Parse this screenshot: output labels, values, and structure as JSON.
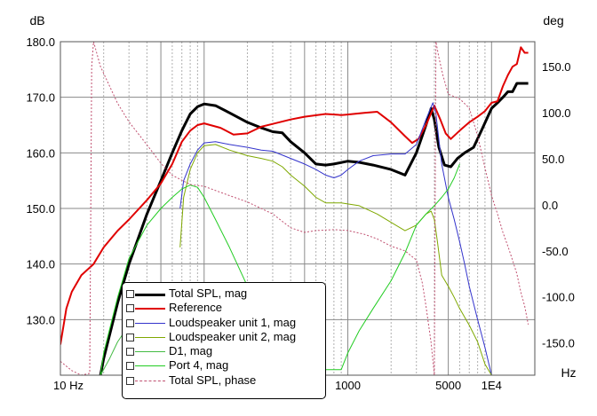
{
  "chart_data": {
    "type": "line",
    "left_unit": "dB",
    "right_unit": "deg",
    "x_unit": "Hz",
    "x_scale": "log",
    "xlim": [
      10,
      20000
    ],
    "ylim_left": [
      120,
      180
    ],
    "ylim_right": [
      -185,
      177
    ],
    "x_tick_labels": [
      {
        "x": 10,
        "label": "10 Hz"
      },
      {
        "x": 1000,
        "label": "1000"
      },
      {
        "x": 5000,
        "label": "5000"
      },
      {
        "x": 10000,
        "label": "1E4"
      }
    ],
    "y_left_ticks": [
      {
        "v": 130,
        "label": "130.0"
      },
      {
        "v": 140,
        "label": "140.0"
      },
      {
        "v": 150,
        "label": "150.0"
      },
      {
        "v": 160,
        "label": "160.0"
      },
      {
        "v": 170,
        "label": "170.0"
      },
      {
        "v": 180,
        "label": "180.0"
      }
    ],
    "y_right_ticks": [
      {
        "v": 150,
        "label": "150.0"
      },
      {
        "v": 100,
        "label": "100.0"
      },
      {
        "v": 50,
        "label": "50.0"
      },
      {
        "v": 0,
        "label": "0.0"
      },
      {
        "v": -50,
        "label": "-50.0"
      },
      {
        "v": -100,
        "label": "-100.0"
      },
      {
        "v": -150,
        "label": "-150.0"
      }
    ],
    "series": [
      {
        "name": "Total SPL, mag",
        "axis": "left",
        "color": "#000000",
        "width": 3,
        "dash": "",
        "points": [
          [
            19,
            120
          ],
          [
            20,
            123
          ],
          [
            25,
            133
          ],
          [
            30,
            140
          ],
          [
            40,
            149
          ],
          [
            50,
            155
          ],
          [
            60,
            160
          ],
          [
            70,
            164
          ],
          [
            80,
            167
          ],
          [
            90,
            168.3
          ],
          [
            100,
            168.8
          ],
          [
            120,
            168.5
          ],
          [
            150,
            167.2
          ],
          [
            200,
            165.5
          ],
          [
            250,
            164.5
          ],
          [
            300,
            163.8
          ],
          [
            350,
            163.6
          ],
          [
            400,
            162
          ],
          [
            500,
            160
          ],
          [
            600,
            158
          ],
          [
            700,
            157.8
          ],
          [
            800,
            158
          ],
          [
            1000,
            158.5
          ],
          [
            1200,
            158.3
          ],
          [
            1500,
            157.8
          ],
          [
            2000,
            157
          ],
          [
            2500,
            156
          ],
          [
            3000,
            160
          ],
          [
            3500,
            165
          ],
          [
            3800,
            168
          ],
          [
            4000,
            166
          ],
          [
            4300,
            161
          ],
          [
            4700,
            157.8
          ],
          [
            5200,
            157.5
          ],
          [
            5800,
            159
          ],
          [
            6500,
            160
          ],
          [
            7500,
            161
          ],
          [
            8500,
            164
          ],
          [
            10000,
            168
          ],
          [
            11000,
            169
          ],
          [
            12000,
            170
          ],
          [
            13000,
            171
          ],
          [
            14000,
            171
          ],
          [
            15000,
            172.5
          ],
          [
            17000,
            172.5
          ],
          [
            18000,
            172.5
          ]
        ]
      },
      {
        "name": "Reference",
        "axis": "left",
        "color": "#e00000",
        "width": 2,
        "dash": "",
        "points": [
          [
            10,
            125.5
          ],
          [
            11,
            132
          ],
          [
            12,
            135
          ],
          [
            14,
            138
          ],
          [
            17,
            140
          ],
          [
            20,
            143
          ],
          [
            25,
            146
          ],
          [
            30,
            148
          ],
          [
            40,
            151.5
          ],
          [
            50,
            154.5
          ],
          [
            60,
            158
          ],
          [
            70,
            162
          ],
          [
            80,
            164
          ],
          [
            90,
            165
          ],
          [
            100,
            165.3
          ],
          [
            130,
            164.5
          ],
          [
            160,
            163.3
          ],
          [
            200,
            163.5
          ],
          [
            250,
            164.7
          ],
          [
            300,
            165.2
          ],
          [
            400,
            166
          ],
          [
            500,
            166.5
          ],
          [
            700,
            167
          ],
          [
            900,
            166.8
          ],
          [
            1000,
            166.9
          ],
          [
            1300,
            167.2
          ],
          [
            1600,
            167.4
          ],
          [
            2000,
            165.5
          ],
          [
            2500,
            163
          ],
          [
            2800,
            161.8
          ],
          [
            3100,
            162.5
          ],
          [
            3500,
            165
          ],
          [
            4000,
            168.5
          ],
          [
            4400,
            166
          ],
          [
            4800,
            163.5
          ],
          [
            5200,
            162.5
          ],
          [
            6000,
            164
          ],
          [
            7000,
            165.5
          ],
          [
            8000,
            166.5
          ],
          [
            9000,
            167.5
          ],
          [
            10000,
            169
          ],
          [
            11000,
            169.3
          ],
          [
            12000,
            172
          ],
          [
            13000,
            174
          ],
          [
            14000,
            175.5
          ],
          [
            15000,
            176
          ],
          [
            16000,
            179
          ],
          [
            17000,
            178
          ],
          [
            18000,
            178
          ]
        ]
      },
      {
        "name": "Loudspeaker unit 1, mag",
        "axis": "left",
        "color": "#3333cc",
        "width": 1,
        "dash": "",
        "points": [
          [
            68,
            150
          ],
          [
            72,
            155
          ],
          [
            80,
            158
          ],
          [
            90,
            160.5
          ],
          [
            100,
            161.8
          ],
          [
            120,
            162
          ],
          [
            150,
            161.5
          ],
          [
            200,
            161
          ],
          [
            250,
            160.5
          ],
          [
            300,
            160.3
          ],
          [
            400,
            159
          ],
          [
            500,
            158
          ],
          [
            600,
            157
          ],
          [
            700,
            156
          ],
          [
            800,
            155.5
          ],
          [
            900,
            156
          ],
          [
            1000,
            157
          ],
          [
            1200,
            158.5
          ],
          [
            1500,
            159.5
          ],
          [
            2000,
            159.8
          ],
          [
            2500,
            159.8
          ],
          [
            3000,
            161.5
          ],
          [
            3500,
            166
          ],
          [
            3900,
            169
          ],
          [
            4100,
            167
          ],
          [
            4500,
            158
          ],
          [
            5000,
            152
          ],
          [
            5500,
            148
          ],
          [
            6000,
            144
          ],
          [
            6500,
            140
          ],
          [
            7000,
            136
          ],
          [
            8000,
            130
          ],
          [
            9000,
            125
          ],
          [
            10000,
            120
          ]
        ]
      },
      {
        "name": "Loudspeaker unit 2, mag",
        "axis": "left",
        "color": "#7fa800",
        "width": 1,
        "dash": "",
        "points": [
          [
            68,
            143
          ],
          [
            72,
            152
          ],
          [
            80,
            157
          ],
          [
            90,
            160
          ],
          [
            100,
            161.3
          ],
          [
            120,
            161.5
          ],
          [
            150,
            160.5
          ],
          [
            200,
            159.5
          ],
          [
            250,
            159
          ],
          [
            300,
            158.5
          ],
          [
            350,
            157.5
          ],
          [
            400,
            156
          ],
          [
            500,
            154
          ],
          [
            600,
            152
          ],
          [
            700,
            151
          ],
          [
            900,
            151
          ],
          [
            1200,
            150.5
          ],
          [
            1600,
            149
          ],
          [
            2000,
            147.5
          ],
          [
            2500,
            146
          ],
          [
            3000,
            147
          ],
          [
            3500,
            149
          ],
          [
            3800,
            149.5
          ],
          [
            4000,
            148
          ],
          [
            4200,
            144
          ],
          [
            4500,
            138
          ],
          [
            5000,
            136
          ],
          [
            5500,
            134
          ],
          [
            6000,
            132
          ],
          [
            7000,
            129
          ],
          [
            8000,
            126
          ],
          [
            9000,
            122
          ],
          [
            10000,
            120
          ]
        ]
      },
      {
        "name": "D1, mag",
        "axis": "left",
        "color": "#44bb44",
        "width": 1,
        "dash": "",
        "points": [
          [
            19,
            120
          ],
          [
            22,
            123
          ],
          [
            25,
            126
          ],
          [
            30,
            129
          ],
          [
            35,
            131
          ],
          [
            38,
            132
          ],
          [
            45,
            132
          ],
          [
            50,
            132
          ],
          [
            55,
            130
          ],
          [
            60,
            127
          ],
          [
            65,
            124
          ],
          [
            70,
            121
          ],
          [
            75,
            119
          ]
        ]
      },
      {
        "name": "Port 4, mag",
        "axis": "left",
        "color": "#22cc22",
        "width": 1,
        "dash": "",
        "points": [
          [
            19,
            120
          ],
          [
            20,
            124
          ],
          [
            25,
            134
          ],
          [
            30,
            141
          ],
          [
            40,
            147
          ],
          [
            50,
            150
          ],
          [
            60,
            152
          ],
          [
            70,
            153.5
          ],
          [
            80,
            154.2
          ],
          [
            90,
            153.8
          ],
          [
            100,
            152
          ],
          [
            120,
            148
          ],
          [
            150,
            143
          ],
          [
            200,
            136
          ],
          [
            250,
            130
          ],
          [
            300,
            125
          ],
          [
            350,
            121
          ],
          [
            900,
            121
          ],
          [
            1000,
            124
          ],
          [
            1200,
            128
          ],
          [
            1500,
            132
          ],
          [
            2000,
            137
          ],
          [
            2500,
            142
          ],
          [
            3000,
            147
          ],
          [
            3500,
            149
          ],
          [
            4000,
            150.5
          ],
          [
            4500,
            152
          ],
          [
            5000,
            153.5
          ],
          [
            5500,
            155.5
          ],
          [
            6000,
            158
          ]
        ]
      },
      {
        "name": "Total SPL, phase",
        "axis": "right",
        "color": "#c05070",
        "width": 1,
        "dash": "2,2",
        "points": [
          [
            10,
            -170
          ],
          [
            12,
            -180
          ],
          [
            14,
            -185
          ],
          [
            16,
            -183
          ],
          [
            16.5,
            150
          ],
          [
            17,
            177
          ],
          [
            19,
            150
          ],
          [
            25,
            110
          ],
          [
            30,
            90
          ],
          [
            40,
            65
          ],
          [
            50,
            45
          ],
          [
            60,
            32
          ],
          [
            80,
            22
          ],
          [
            100,
            20
          ],
          [
            150,
            10
          ],
          [
            200,
            3
          ],
          [
            300,
            -10
          ],
          [
            400,
            -25
          ],
          [
            500,
            -30
          ],
          [
            600,
            -28
          ],
          [
            800,
            -27
          ],
          [
            1000,
            -28
          ],
          [
            1300,
            -32
          ],
          [
            1600,
            -37
          ],
          [
            2000,
            -45
          ],
          [
            2500,
            -50
          ],
          [
            3000,
            -60
          ],
          [
            3300,
            -85
          ],
          [
            3500,
            -110
          ],
          [
            3800,
            -150
          ],
          [
            4000,
            -185
          ],
          [
            4100,
            177
          ],
          [
            4300,
            160
          ],
          [
            4600,
            140
          ],
          [
            5000,
            120
          ],
          [
            6000,
            115
          ],
          [
            7000,
            105
          ],
          [
            8000,
            75
          ],
          [
            9000,
            40
          ],
          [
            10000,
            10
          ],
          [
            11000,
            -10
          ],
          [
            12000,
            -30
          ],
          [
            13000,
            -45
          ],
          [
            14000,
            -60
          ],
          [
            15000,
            -75
          ],
          [
            16000,
            -95
          ],
          [
            17000,
            -110
          ],
          [
            18000,
            -130
          ]
        ]
      }
    ]
  }
}
